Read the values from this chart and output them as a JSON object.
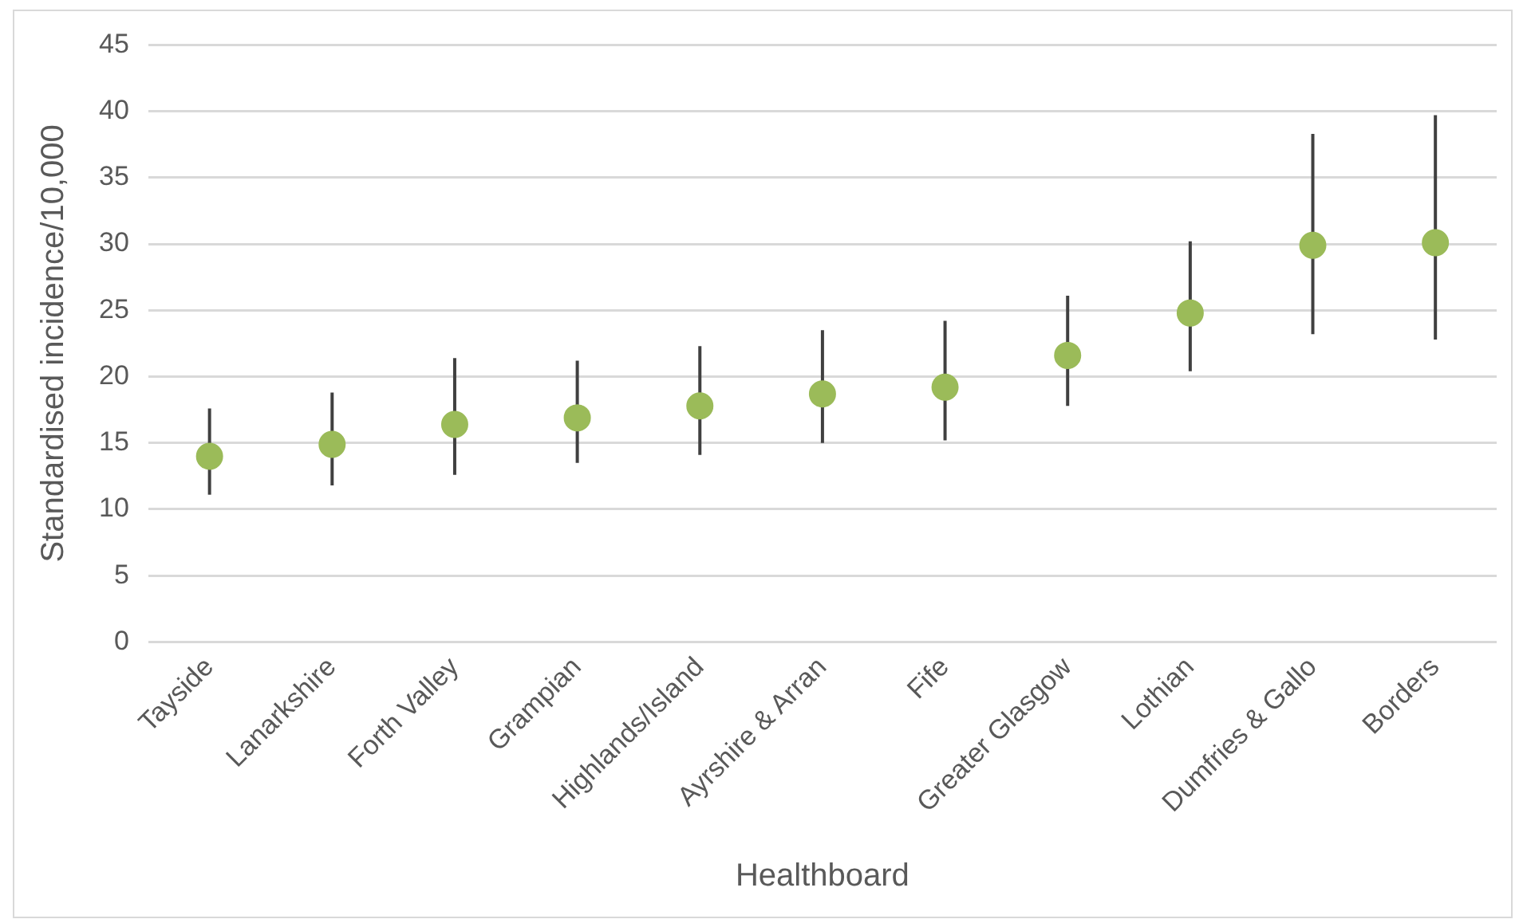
{
  "chart_data": {
    "type": "scatter",
    "xlabel": "Healthboard",
    "ylabel": "Standardised incidence/10,000",
    "categories": [
      "Tayside",
      "Lanarkshire",
      "Forth Valley",
      "Grampian",
      "Highlands/Island",
      "Ayrshire & Arran",
      "Fife",
      "Greater Glasgow",
      "Lothian",
      "Dumfries & Gallo",
      "Borders"
    ],
    "series": [
      {
        "color": "#9bbb59",
        "values": [
          14.0,
          14.9,
          16.4,
          16.9,
          17.8,
          18.7,
          19.2,
          21.6,
          24.8,
          29.9,
          30.1
        ],
        "errors": [
          [
            11.1,
            17.6
          ],
          [
            11.8,
            18.8
          ],
          [
            12.6,
            21.4
          ],
          [
            13.5,
            21.2
          ],
          [
            14.1,
            22.3
          ],
          [
            15.0,
            23.5
          ],
          [
            15.2,
            24.2
          ],
          [
            17.8,
            26.1
          ],
          [
            20.4,
            30.2
          ],
          [
            23.2,
            38.3
          ],
          [
            22.8,
            39.7
          ]
        ]
      }
    ],
    "ylim": [
      0,
      45
    ],
    "yticks": [
      0,
      5,
      10,
      15,
      20,
      25,
      30,
      35,
      40,
      45
    ],
    "grid": "y",
    "legend": false,
    "marker": "circle"
  }
}
